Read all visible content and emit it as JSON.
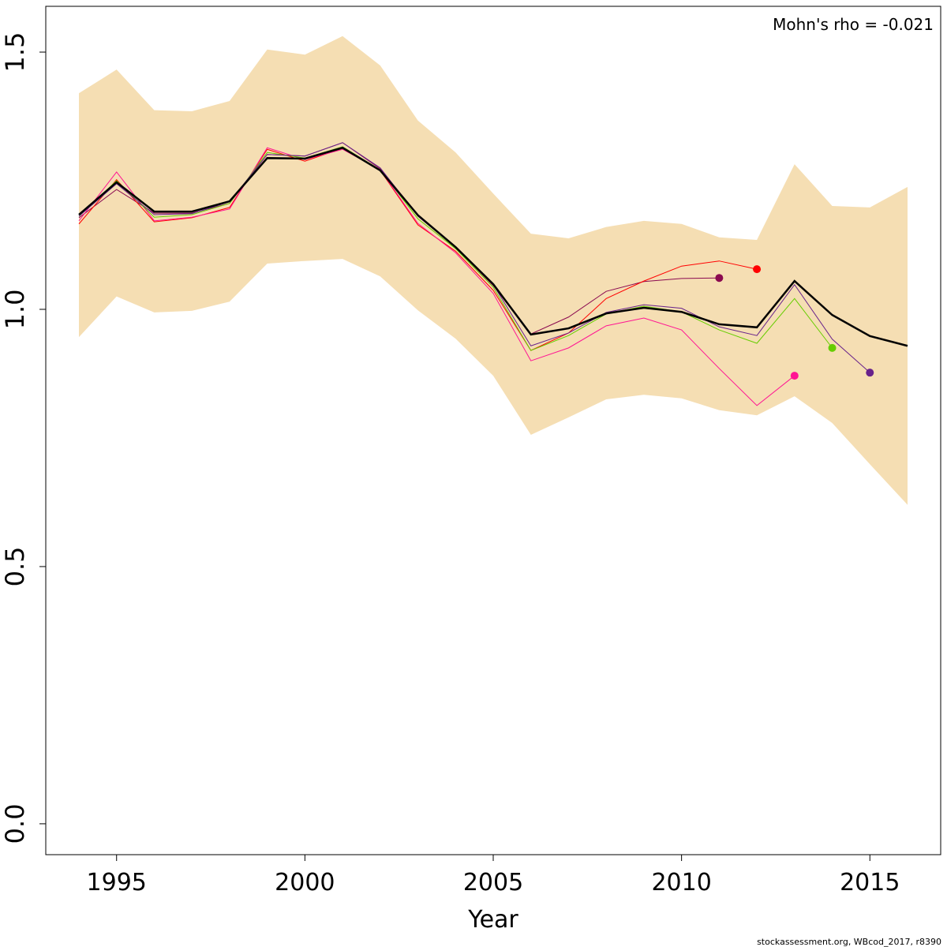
{
  "chart_data": {
    "type": "line",
    "xlabel": "Year",
    "annotation": "Mohn's rho = -0.021",
    "footer": "stockassessment.org, WBcod_2017, r8390",
    "x": [
      1994,
      1995,
      1996,
      1997,
      1998,
      1999,
      2000,
      2001,
      2002,
      2003,
      2004,
      2005,
      2006,
      2007,
      2008,
      2009,
      2010,
      2011,
      2012,
      2013,
      2014,
      2015,
      2016
    ],
    "xlim": [
      1993.12,
      2016.88
    ],
    "xticks": [
      1995,
      2000,
      2005,
      2010,
      2015
    ],
    "ylim": [
      -0.06,
      1.589
    ],
    "yticks": [
      {
        "value": 0,
        "label": "0.0"
      },
      0.5,
      {
        "value": 1,
        "label": "1.0"
      },
      1.5
    ],
    "band": {
      "color": "#F5DEB3",
      "upper": [
        1.42,
        1.466,
        1.387,
        1.385,
        1.405,
        1.505,
        1.495,
        1.531,
        1.474,
        1.367,
        1.305,
        1.225,
        1.147,
        1.138,
        1.16,
        1.172,
        1.166,
        1.14,
        1.135,
        1.282,
        1.201,
        1.198,
        1.238
      ],
      "lower": [
        0.946,
        1.025,
        0.994,
        0.997,
        1.015,
        1.089,
        1.094,
        1.098,
        1.064,
        0.998,
        0.943,
        0.871,
        0.756,
        0.79,
        0.825,
        0.834,
        0.827,
        0.804,
        0.794,
        0.831,
        0.779,
        0.699,
        0.62
      ]
    },
    "series": [
      {
        "color": "#8B0A50",
        "values": [
          1.178,
          1.233,
          1.187,
          1.187,
          1.206,
          1.301,
          1.298,
          1.324,
          1.273,
          1.184,
          1.12,
          1.046,
          0.952,
          0.985,
          1.035,
          1.054,
          1.06,
          1.061,
          null,
          null,
          null,
          null,
          null
        ]
      },
      {
        "color": "#FF0000",
        "values": [
          1.166,
          1.252,
          1.17,
          1.178,
          1.198,
          1.311,
          1.288,
          1.313,
          1.27,
          1.164,
          1.113,
          1.037,
          0.92,
          0.954,
          1.021,
          1.055,
          1.084,
          1.094,
          1.078,
          null,
          null,
          null,
          null
        ]
      },
      {
        "color": "#FF1493",
        "values": [
          1.172,
          1.267,
          1.172,
          1.179,
          1.195,
          1.314,
          1.291,
          1.311,
          1.271,
          1.167,
          1.11,
          1.031,
          0.9,
          0.925,
          0.968,
          0.983,
          0.96,
          0.885,
          0.813,
          0.871,
          null,
          null,
          null
        ]
      },
      {
        "color": "#66CD00",
        "values": [
          1.181,
          1.25,
          1.179,
          1.184,
          1.206,
          1.305,
          1.294,
          1.316,
          1.271,
          1.176,
          1.118,
          1.043,
          0.92,
          0.949,
          0.991,
          1.006,
          0.995,
          0.96,
          0.934,
          1.021,
          0.925,
          null,
          null
        ]
      },
      {
        "color": "#68228B",
        "values": [
          1.181,
          1.244,
          1.184,
          1.186,
          1.209,
          1.301,
          1.298,
          1.324,
          1.275,
          1.181,
          1.12,
          1.048,
          0.929,
          0.954,
          0.994,
          1.009,
          1.002,
          0.966,
          0.949,
          1.048,
          0.942,
          0.877,
          null
        ]
      },
      {
        "color": "#000000",
        "values": [
          1.184,
          1.247,
          1.19,
          1.19,
          1.21,
          1.294,
          1.293,
          1.314,
          1.27,
          1.183,
          1.121,
          1.049,
          0.951,
          0.963,
          0.992,
          1.003,
          0.995,
          0.971,
          0.965,
          1.055,
          0.989,
          0.948,
          0.929
        ]
      }
    ]
  }
}
